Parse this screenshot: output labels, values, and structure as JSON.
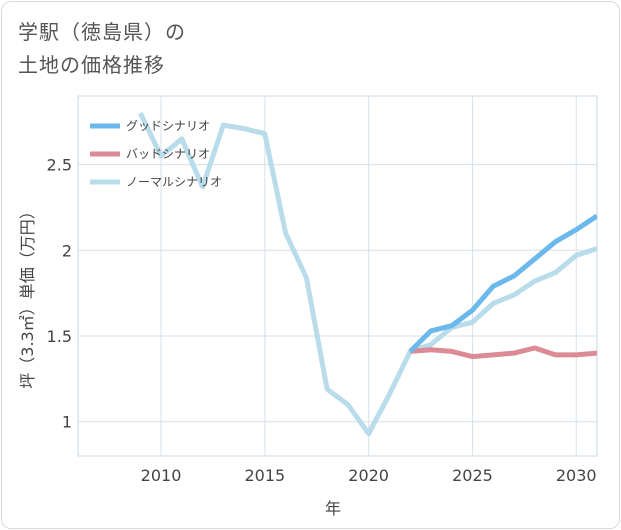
{
  "title_lines": [
    "学駅（徳島県）の",
    "土地の価格推移"
  ],
  "chart_data": {
    "type": "line",
    "xlabel": "年",
    "ylabel": "坪（3.3㎡）単価（万円）",
    "xlim": [
      2006,
      2031
    ],
    "ylim": [
      0.8,
      2.9
    ],
    "x_ticks": [
      2010,
      2015,
      2020,
      2025,
      2030
    ],
    "y_ticks": [
      1,
      1.5,
      2,
      2.5
    ],
    "x_tick_labels": [
      "2010",
      "2015",
      "2020",
      "2025",
      "2030"
    ],
    "y_tick_labels": [
      "1",
      "1.5",
      "2",
      "2.5"
    ],
    "legend_position": "top-left",
    "series": [
      {
        "name": "グッドシナリオ",
        "color": "#6bb8ec",
        "x": [
          2022,
          2023,
          2024,
          2025,
          2026,
          2027,
          2028,
          2029,
          2030,
          2031
        ],
        "y": [
          1.41,
          1.53,
          1.56,
          1.65,
          1.79,
          1.85,
          1.95,
          2.05,
          2.12,
          2.2
        ]
      },
      {
        "name": "バッドシナリオ",
        "color": "#dc8a96",
        "x": [
          2022,
          2023,
          2024,
          2025,
          2026,
          2027,
          2028,
          2029,
          2030,
          2031
        ],
        "y": [
          1.41,
          1.42,
          1.41,
          1.38,
          1.39,
          1.4,
          1.43,
          1.39,
          1.39,
          1.4
        ]
      },
      {
        "name": "ノーマルシナリオ",
        "color": "#b9dcea",
        "x": [
          2009,
          2010,
          2011,
          2012,
          2013,
          2014,
          2015,
          2016,
          2017,
          2018,
          2019,
          2020,
          2021,
          2022,
          2023,
          2024,
          2025,
          2026,
          2027,
          2028,
          2029,
          2030,
          2031
        ],
        "y": [
          2.8,
          2.55,
          2.65,
          2.37,
          2.73,
          2.71,
          2.68,
          2.1,
          1.84,
          1.19,
          1.1,
          0.93,
          1.16,
          1.41,
          1.45,
          1.55,
          1.58,
          1.69,
          1.74,
          1.82,
          1.87,
          1.97,
          2.01
        ]
      }
    ]
  }
}
